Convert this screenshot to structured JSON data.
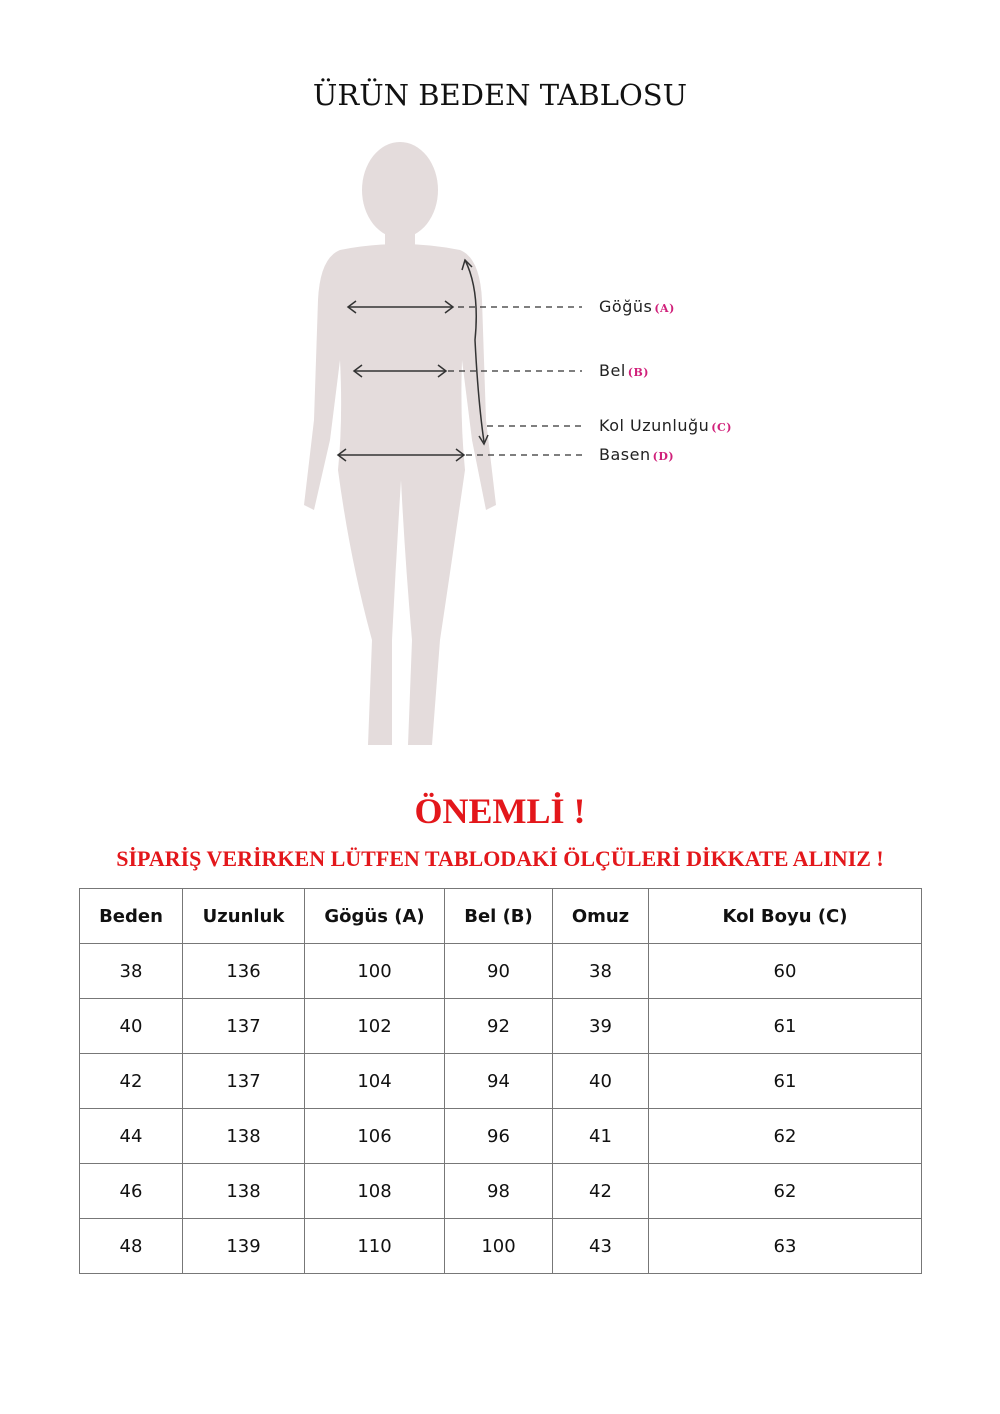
{
  "title": "ÜRÜN BEDEN TABLOSU",
  "figure": {
    "labels": [
      {
        "name": "Göğüs",
        "code": "(A)"
      },
      {
        "name": "Bel",
        "code": "(B)"
      },
      {
        "name": "Kol Uzunluğu",
        "code": "(C)"
      },
      {
        "name": "Basen",
        "code": "(D)"
      }
    ]
  },
  "important": "ÖNEMLİ !",
  "notice": "SİPARİŞ VERİRKEN LÜTFEN TABLODAKİ ÖLÇÜLERİ DİKKATE ALINIZ !",
  "table": {
    "headers": [
      "Beden",
      "Uzunluk",
      "Gögüs (A)",
      "Bel (B)",
      "Omuz",
      "Kol Boyu (C)"
    ],
    "rows": [
      [
        "38",
        "136",
        "100",
        "90",
        "38",
        "60"
      ],
      [
        "40",
        "137",
        "102",
        "92",
        "39",
        "61"
      ],
      [
        "42",
        "137",
        "104",
        "94",
        "40",
        "61"
      ],
      [
        "44",
        "138",
        "106",
        "96",
        "41",
        "62"
      ],
      [
        "46",
        "138",
        "108",
        "98",
        "42",
        "62"
      ],
      [
        "48",
        "139",
        "110",
        "100",
        "43",
        "63"
      ]
    ]
  }
}
